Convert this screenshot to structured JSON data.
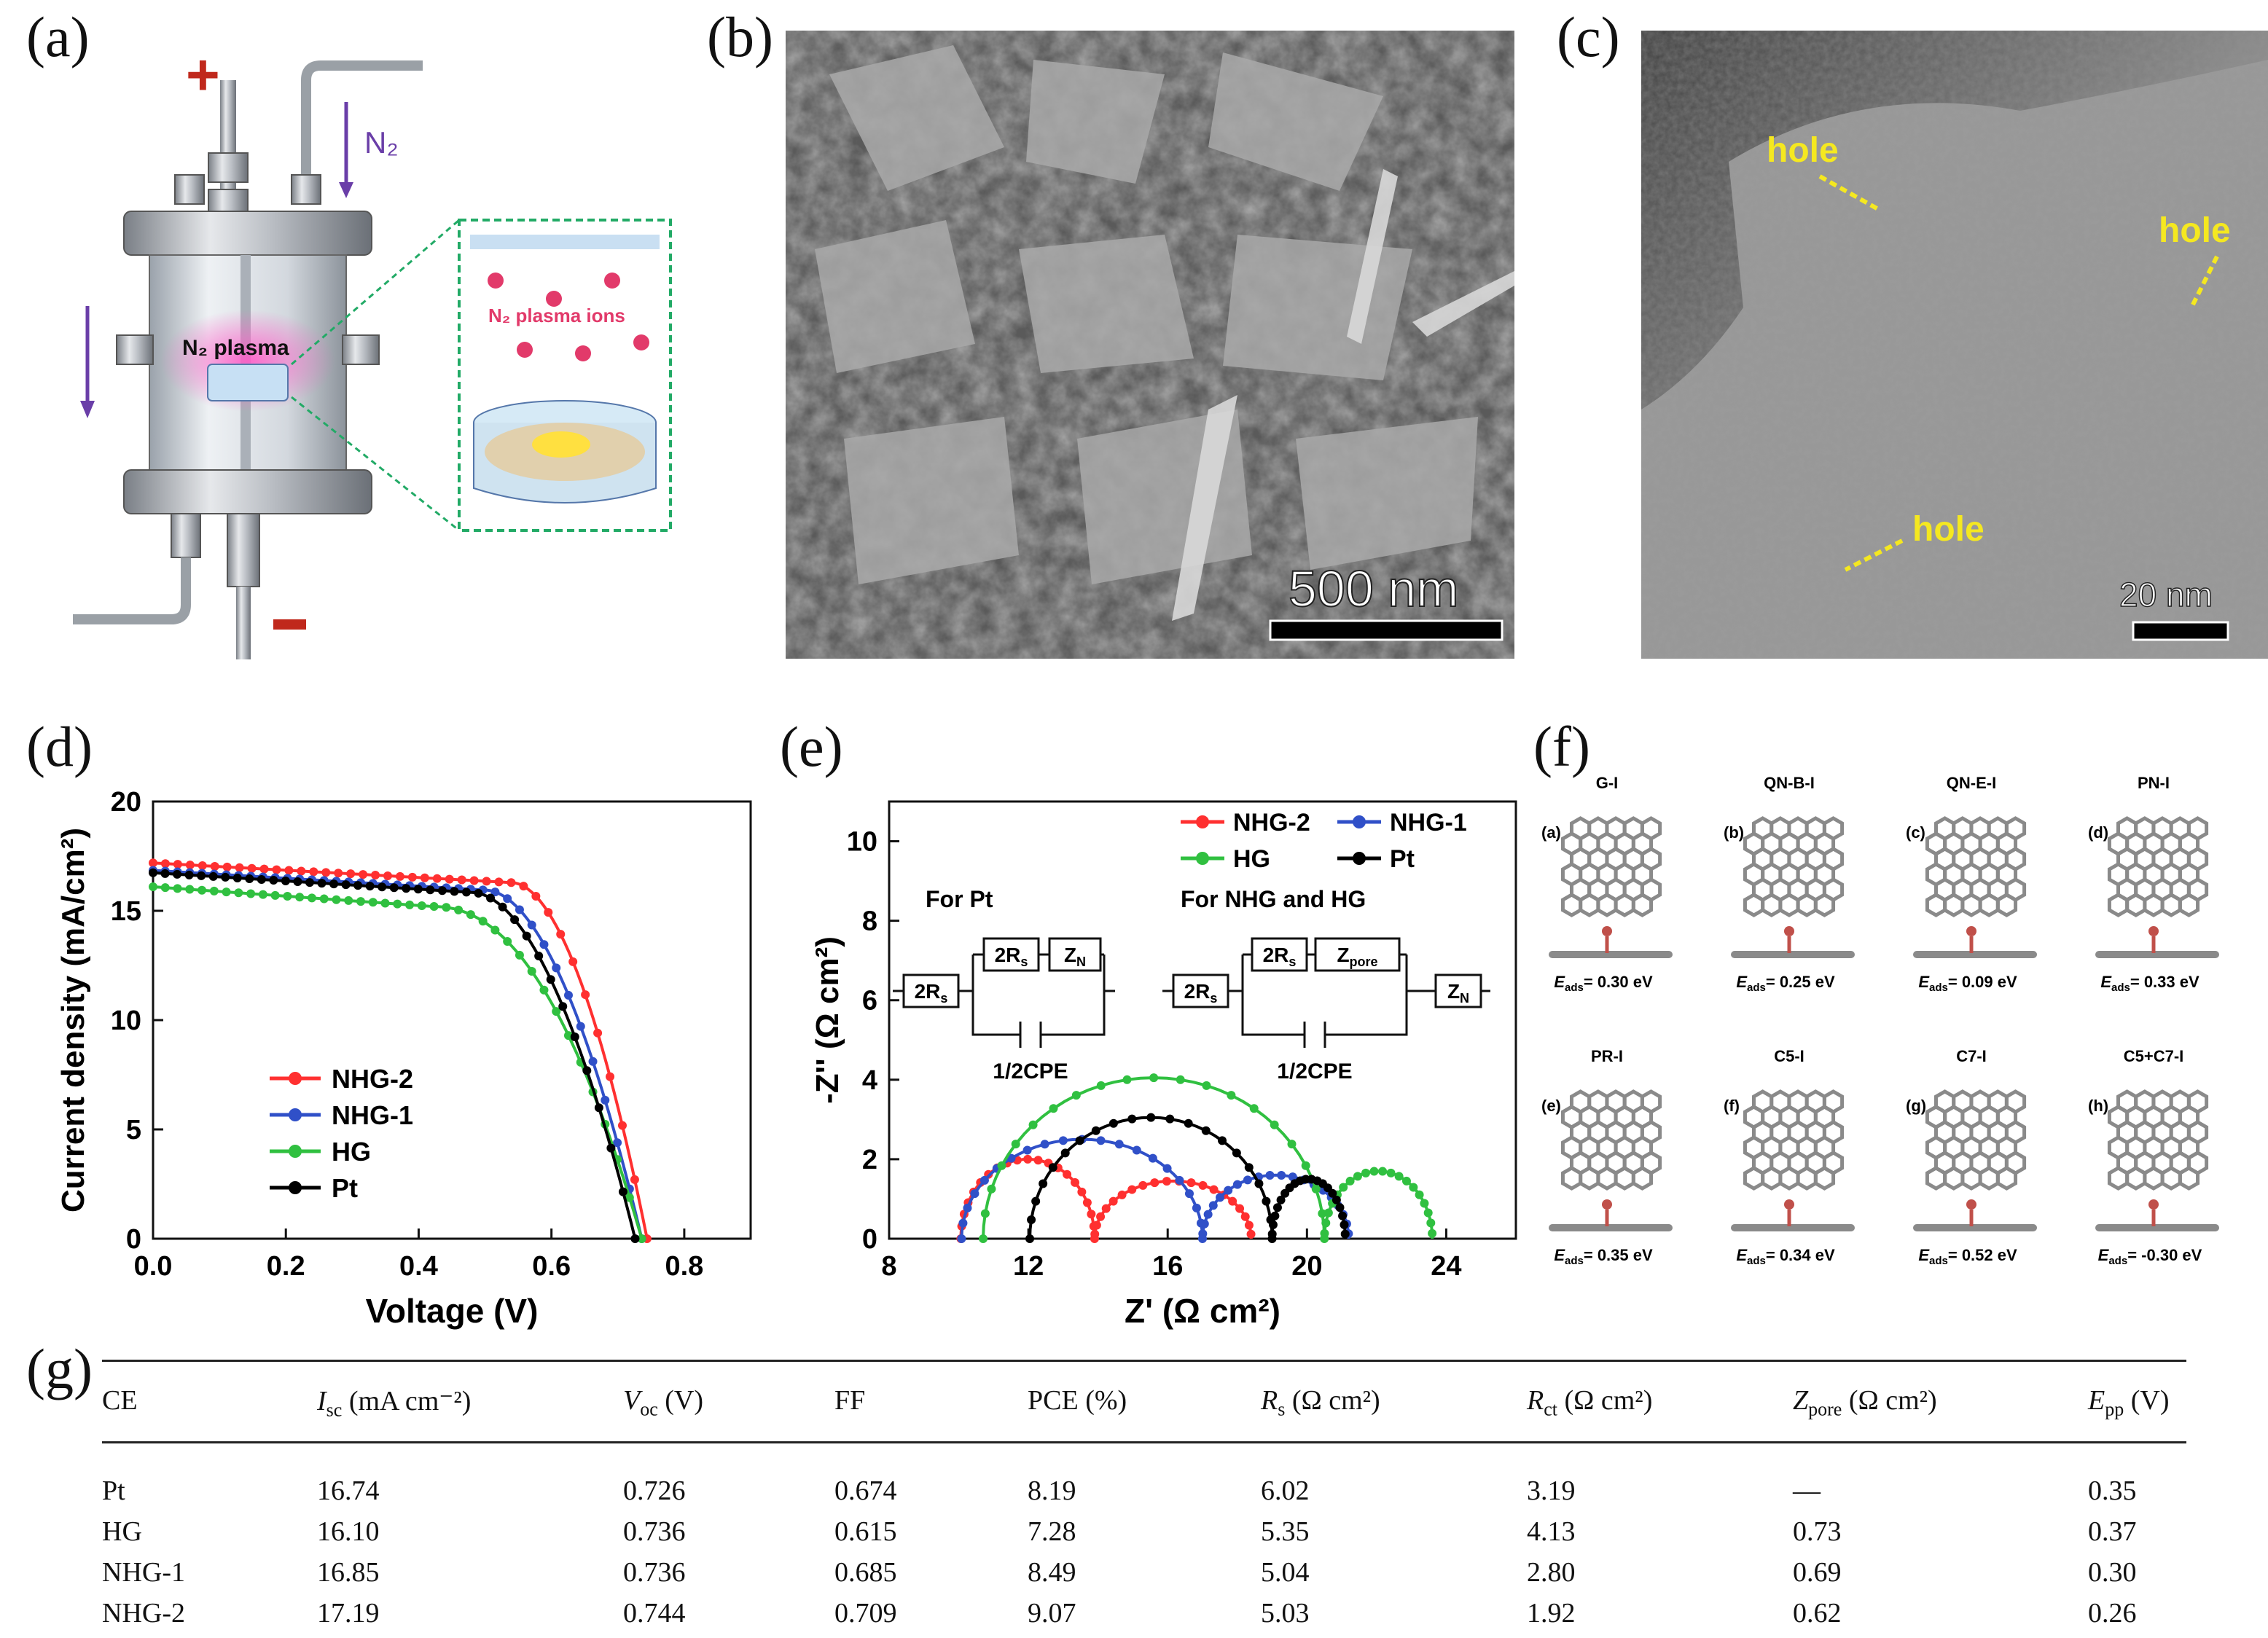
{
  "panel_labels": [
    "(a)",
    "(b)",
    "(c)",
    "(d)",
    "(e)",
    "(f)",
    "(g)"
  ],
  "panel_a": {
    "plus": "+",
    "minus": "−",
    "gas_label": "N₂",
    "plasma_label": "N₂ plasma",
    "ions_label": "N₂ plasma ions"
  },
  "panel_b": {
    "scale_bar": "500 nm"
  },
  "panel_c": {
    "labels": [
      "hole",
      "hole",
      "hole"
    ],
    "scale_bar": "20 nm"
  },
  "panel_f": {
    "structures": [
      {
        "tag": "(a)",
        "name": "G-I",
        "energy": "= 0.30 eV"
      },
      {
        "tag": "(b)",
        "name": "QN-B-I",
        "energy": "= 0.25 eV"
      },
      {
        "tag": "(c)",
        "name": "QN-E-I",
        "energy": "= 0.09 eV"
      },
      {
        "tag": "(d)",
        "name": "PN-I",
        "energy": "= 0.33 eV"
      },
      {
        "tag": "(e)",
        "name": "PR-I",
        "energy": "= 0.35 eV"
      },
      {
        "tag": "(f)",
        "name": "C5-I",
        "energy": "= 0.34 eV"
      },
      {
        "tag": "(g)",
        "name": "C7-I",
        "energy": "= 0.52 eV"
      },
      {
        "tag": "(h)",
        "name": "C5+C7-I",
        "energy": "= -0.30 eV"
      }
    ]
  },
  "chart_data": [
    {
      "type": "line",
      "panel": "(d)",
      "xlabel": "Voltage (V)",
      "ylabel": "Current density (mA/cm²)",
      "xlim": [
        0,
        0.9
      ],
      "ylim": [
        0,
        20
      ],
      "xticks": [
        "0.0",
        "0.2",
        "0.4",
        "0.6",
        "0.8"
      ],
      "yticks": [
        "0",
        "5",
        "10",
        "15",
        "20"
      ],
      "legend_position": "center-left",
      "series": [
        {
          "name": "NHG-2",
          "color": "#ff3030",
          "jsc": 17.19,
          "voc": 0.744,
          "v_knee": 0.54,
          "curve": 1.9
        },
        {
          "name": "NHG-1",
          "color": "#3050c8",
          "jsc": 16.85,
          "voc": 0.736,
          "v_knee": 0.5,
          "curve": 1.9
        },
        {
          "name": "HG",
          "color": "#30c040",
          "jsc": 16.1,
          "voc": 0.736,
          "v_knee": 0.42,
          "curve": 2.2
        },
        {
          "name": "Pt",
          "color": "#000000",
          "jsc": 16.74,
          "voc": 0.726,
          "v_knee": 0.48,
          "curve": 1.9
        }
      ]
    },
    {
      "type": "line",
      "panel": "(e)",
      "xlabel": "Z' (Ω cm²)",
      "ylabel": "-Z'' (Ω cm²)",
      "xlim": [
        8,
        26
      ],
      "ylim": [
        0,
        11
      ],
      "xticks": [
        "8",
        "12",
        "16",
        "20",
        "24"
      ],
      "yticks": [
        "0",
        "2",
        "4",
        "6",
        "8",
        "10"
      ],
      "legend_position": "top-right",
      "series": [
        {
          "name": "NHG-2",
          "color": "#ff3030",
          "arcs": [
            [
              10.06,
              13.9,
              2.0
            ],
            [
              13.9,
              18.4,
              1.45
            ]
          ]
        },
        {
          "name": "NHG-1",
          "color": "#3050c8",
          "arcs": [
            [
              10.08,
              17.0,
              2.5
            ],
            [
              17.0,
              21.2,
              1.6
            ]
          ]
        },
        {
          "name": "HG",
          "color": "#30c040",
          "arcs": [
            [
              10.7,
              20.5,
              4.05
            ],
            [
              20.5,
              23.6,
              1.7
            ]
          ]
        },
        {
          "name": "Pt",
          "color": "#000000",
          "arcs": [
            [
              12.04,
              19.0,
              3.05
            ],
            [
              19.0,
              21.1,
              1.5
            ]
          ]
        }
      ],
      "inset": {
        "left_title": "For Pt",
        "right_title": "For NHG and HG",
        "cpe": "1/2CPE",
        "rs": "2R",
        "rs_sub": "s",
        "zn": "Z",
        "zn_sub": "N",
        "zpore": "Z",
        "zpore_sub": "pore"
      }
    },
    {
      "type": "table",
      "panel": "(g)",
      "headers": [
        "CE",
        "I",
        "V",
        "FF",
        "PCE (%)",
        "R",
        "R",
        "Z",
        "E"
      ],
      "header_subs": [
        "",
        "sc",
        "oc",
        "",
        "",
        "s",
        "ct",
        "pore",
        "pp"
      ],
      "header_units": [
        "",
        "(mA cm⁻²)",
        "(V)",
        "",
        "",
        "(Ω cm²)",
        "(Ω cm²)",
        "(Ω cm²)",
        "(V)"
      ],
      "rows": [
        [
          "Pt",
          "16.74",
          "0.726",
          "0.674",
          "8.19",
          "6.02",
          "3.19",
          "—",
          "0.35"
        ],
        [
          "HG",
          "16.10",
          "0.736",
          "0.615",
          "7.28",
          "5.35",
          "4.13",
          "0.73",
          "0.37"
        ],
        [
          "NHG-1",
          "16.85",
          "0.736",
          "0.685",
          "8.49",
          "5.04",
          "2.80",
          "0.69",
          "0.30"
        ],
        [
          "NHG-2",
          "17.19",
          "0.744",
          "0.709",
          "9.07",
          "5.03",
          "1.92",
          "0.62",
          "0.26"
        ]
      ]
    }
  ]
}
